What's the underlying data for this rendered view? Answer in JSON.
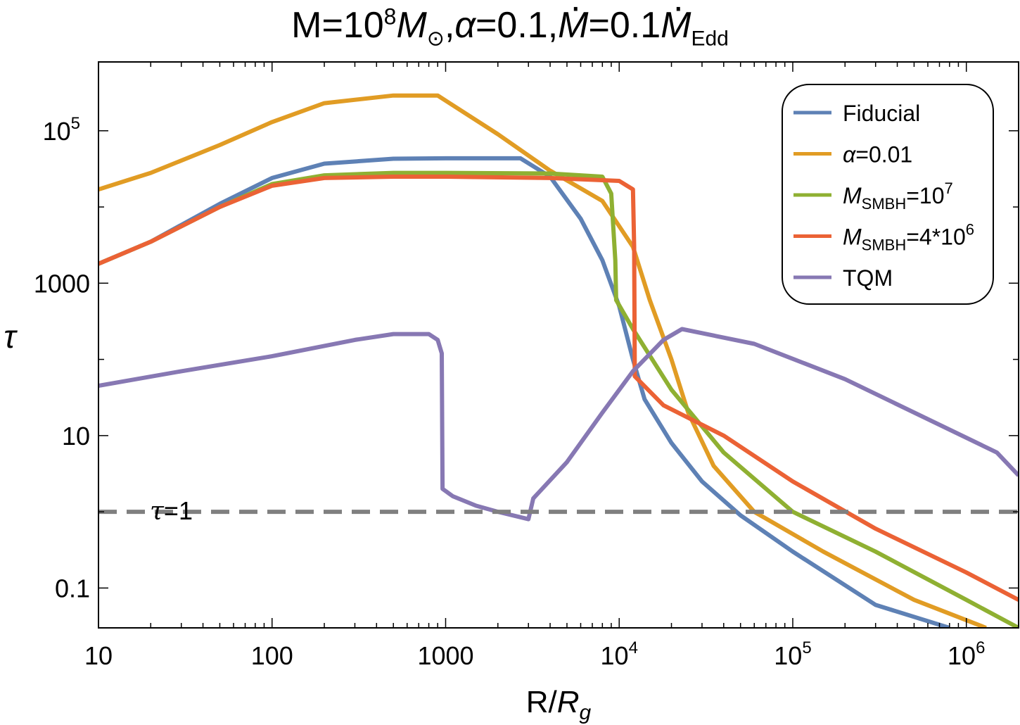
{
  "title": {
    "parts": [
      "M=10",
      "8",
      "M",
      "⊙",
      ",",
      "α",
      "=0.1,",
      "M",
      "=0.1",
      "M",
      "Edd"
    ]
  },
  "chart_data": {
    "type": "line",
    "xscale": "log",
    "yscale": "log",
    "xlim": [
      10,
      2000000
    ],
    "ylim": [
      0.03,
      800000
    ],
    "xlabel": {
      "main": "R/",
      "italic": "R",
      "sub": "g"
    },
    "ylabel": "τ",
    "x_ticks": [
      {
        "value": 10,
        "label": "10"
      },
      {
        "value": 100,
        "label": "100"
      },
      {
        "value": 1000,
        "label": "1000"
      },
      {
        "value": 10000,
        "label": "10",
        "sup": "4"
      },
      {
        "value": 100000,
        "label": "10",
        "sup": "5"
      },
      {
        "value": 1000000,
        "label": "10",
        "sup": "6"
      }
    ],
    "y_ticks": [
      {
        "value": 0.1,
        "label": "0.1"
      },
      {
        "value": 10,
        "label": "10"
      },
      {
        "value": 1000,
        "label": "1000"
      },
      {
        "value": 100000,
        "label": "10",
        "sup": "5"
      }
    ],
    "reference_line": {
      "y": 1,
      "label": "τ",
      "label_value": "=1",
      "color": "#808080"
    },
    "legend": {
      "position": "top-right"
    },
    "series": [
      {
        "name": "Fiducial",
        "color": "#5e81b5",
        "points": [
          [
            10,
            1800
          ],
          [
            20,
            3500
          ],
          [
            50,
            11000
          ],
          [
            100,
            24000
          ],
          [
            200,
            37000
          ],
          [
            500,
            43000
          ],
          [
            1000,
            43500
          ],
          [
            2700,
            43500
          ],
          [
            4000,
            25000
          ],
          [
            6000,
            7000
          ],
          [
            8000,
            2000
          ],
          [
            10000,
            500
          ],
          [
            12000,
            100
          ],
          [
            14000,
            30
          ],
          [
            20000,
            8
          ],
          [
            30000,
            2.5
          ],
          [
            50000,
            0.9
          ],
          [
            100000,
            0.3
          ],
          [
            300000,
            0.06
          ],
          [
            800000,
            0.03
          ]
        ]
      },
      {
        "name": "α=0.01",
        "label_parts": {
          "italic": "α",
          "rest": "=0.01"
        },
        "color": "#e19c24",
        "points": [
          [
            10,
            17000
          ],
          [
            20,
            28000
          ],
          [
            50,
            65000
          ],
          [
            100,
            130000
          ],
          [
            200,
            230000
          ],
          [
            500,
            290000
          ],
          [
            900,
            290000
          ],
          [
            2000,
            90000
          ],
          [
            4000,
            30000
          ],
          [
            8000,
            12000
          ],
          [
            12000,
            3000
          ],
          [
            15000,
            600
          ],
          [
            20000,
            100
          ],
          [
            25000,
            20
          ],
          [
            35000,
            4
          ],
          [
            60000,
            1
          ],
          [
            150000,
            0.3
          ],
          [
            500000,
            0.07
          ],
          [
            1300000,
            0.03
          ]
        ]
      },
      {
        "name": "M SMBH=10^7",
        "label_parts": {
          "italic": "M",
          "sub": "SMBH",
          "rest": "=10",
          "sup": "7"
        },
        "color": "#8fb032",
        "points": [
          [
            10,
            1800
          ],
          [
            20,
            3500
          ],
          [
            50,
            10000
          ],
          [
            100,
            20000
          ],
          [
            200,
            26000
          ],
          [
            500,
            28000
          ],
          [
            1000,
            28000
          ],
          [
            4000,
            27500
          ],
          [
            8000,
            25000
          ],
          [
            9000,
            15000
          ],
          [
            9500,
            2000
          ],
          [
            9600,
            600
          ],
          [
            12000,
            250
          ],
          [
            20000,
            40
          ],
          [
            40000,
            6
          ],
          [
            100000,
            1
          ],
          [
            300000,
            0.3
          ],
          [
            1000000,
            0.07
          ],
          [
            2000000,
            0.03
          ]
        ]
      },
      {
        "name": "M SMBH=4*10^6",
        "label_parts": {
          "italic": "M",
          "sub": "SMBH",
          "rest": "=4*10",
          "sup": "6"
        },
        "color": "#eb6235",
        "points": [
          [
            10,
            1800
          ],
          [
            20,
            3500
          ],
          [
            50,
            10000
          ],
          [
            100,
            19000
          ],
          [
            200,
            24000
          ],
          [
            500,
            25000
          ],
          [
            1000,
            25000
          ],
          [
            4000,
            24000
          ],
          [
            10000,
            22000
          ],
          [
            12000,
            17000
          ],
          [
            12200,
            3000
          ],
          [
            12300,
            60
          ],
          [
            18000,
            25
          ],
          [
            40000,
            10
          ],
          [
            100000,
            2.5
          ],
          [
            300000,
            0.6
          ],
          [
            1000000,
            0.16
          ],
          [
            2000000,
            0.07
          ]
        ]
      },
      {
        "name": "TQM",
        "color": "#8778b3",
        "points": [
          [
            10,
            45
          ],
          [
            30,
            70
          ],
          [
            100,
            110
          ],
          [
            300,
            180
          ],
          [
            500,
            215
          ],
          [
            800,
            215
          ],
          [
            900,
            180
          ],
          [
            950,
            120
          ],
          [
            960,
            2
          ],
          [
            1100,
            1.6
          ],
          [
            1500,
            1.2
          ],
          [
            2000,
            1
          ],
          [
            3000,
            0.8
          ],
          [
            3200,
            1.5
          ],
          [
            5000,
            4.5
          ],
          [
            8000,
            20
          ],
          [
            12000,
            70
          ],
          [
            18000,
            180
          ],
          [
            23000,
            250
          ],
          [
            60000,
            160
          ],
          [
            200000,
            55
          ],
          [
            1500000,
            6
          ],
          [
            2000000,
            3
          ]
        ]
      }
    ]
  }
}
